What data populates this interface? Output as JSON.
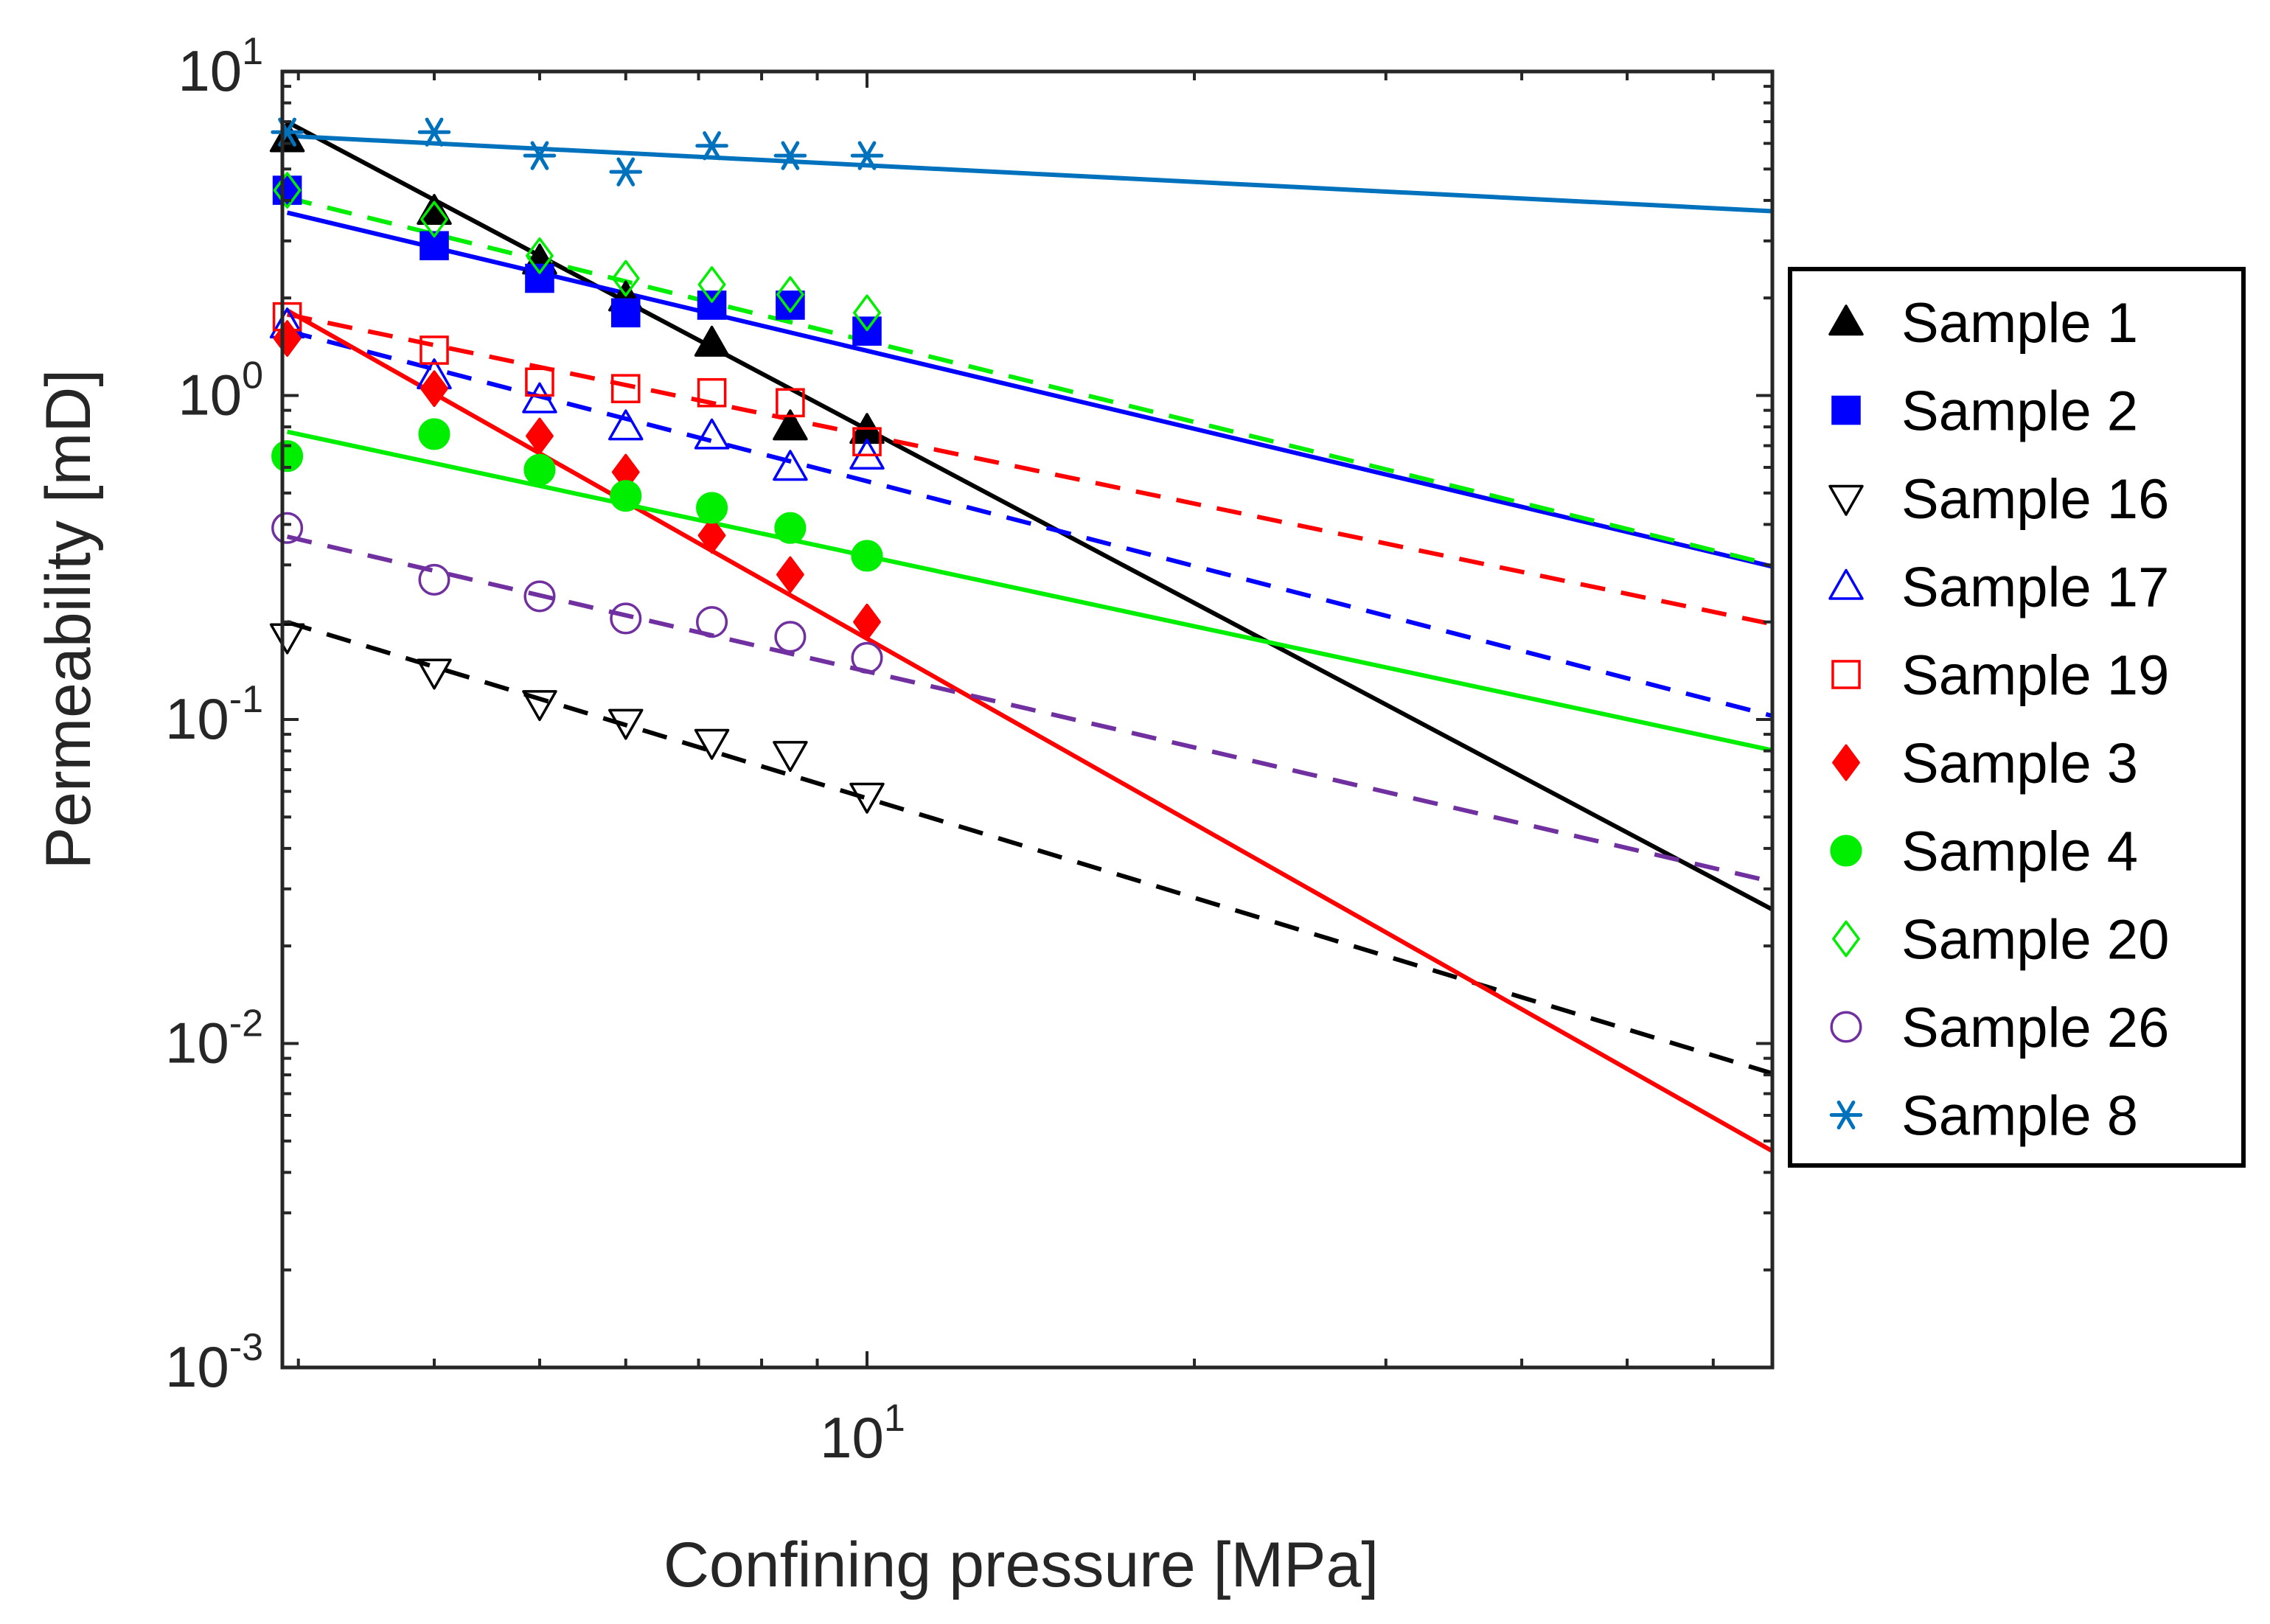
{
  "chart_data": {
    "type": "scatter",
    "xlabel": "Confining pressure [MPa]",
    "ylabel": "Permeability [mD]",
    "xscale": "log",
    "yscale": "log",
    "xlim": [
      2.9,
      68
    ],
    "ylim": [
      0.001,
      10
    ],
    "x_ticks": [
      {
        "value": 10,
        "base": "10",
        "exp": "1"
      }
    ],
    "y_ticks": [
      {
        "value": 10,
        "base": "10",
        "exp": "1"
      },
      {
        "value": 1,
        "base": "10",
        "exp": "0"
      },
      {
        "value": 0.1,
        "base": "10",
        "exp": "-1"
      },
      {
        "value": 0.01,
        "base": "10",
        "exp": "-2"
      },
      {
        "value": 0.001,
        "base": "10",
        "exp": "-3"
      }
    ],
    "legend_position": "right",
    "series": [
      {
        "name": "Sample 1",
        "marker": "triangle-up",
        "filled": true,
        "color": "#000000",
        "fit_style": "solid",
        "x": [
          2.93,
          4,
          5,
          6,
          7.2,
          8.5,
          10
        ],
        "y": [
          6.2,
          3.7,
          2.6,
          2.0,
          1.45,
          0.8,
          0.78
        ],
        "fit": {
          "a": 6.7,
          "b": -1.78
        }
      },
      {
        "name": "Sample 2",
        "marker": "square",
        "filled": true,
        "color": "#0000ff",
        "fit_style": "solid",
        "x": [
          2.93,
          4,
          5,
          6,
          7.2,
          8.5,
          10
        ],
        "y": [
          4.3,
          2.9,
          2.3,
          1.8,
          1.9,
          1.9,
          1.58
        ],
        "fit": {
          "a": 3.6,
          "b": -0.8
        }
      },
      {
        "name": "Sample 16",
        "marker": "triangle-down",
        "filled": false,
        "color": "#000000",
        "fit_style": "dashed",
        "x": [
          2.93,
          4,
          5,
          6,
          7.2,
          8.5,
          10
        ],
        "y": [
          0.18,
          0.14,
          0.112,
          0.098,
          0.085,
          0.078,
          0.058
        ],
        "fit": {
          "a": 0.195,
          "b": -1.02
        }
      },
      {
        "name": "Sample 17",
        "marker": "triangle-up",
        "filled": false,
        "color": "#0000ff",
        "fit_style": "dashed",
        "x": [
          2.93,
          4,
          5,
          6,
          7.2,
          8.5,
          10
        ],
        "y": [
          1.65,
          1.15,
          0.97,
          0.8,
          0.75,
          0.6,
          0.65
        ],
        "fit": {
          "a": 1.55,
          "b": -0.87
        }
      },
      {
        "name": "Sample 19",
        "marker": "square",
        "filled": false,
        "color": "#ff0000",
        "fit_style": "dashed",
        "x": [
          2.93,
          4,
          5,
          6,
          7.2,
          8.5,
          10
        ],
        "y": [
          1.75,
          1.38,
          1.1,
          1.05,
          1.02,
          0.95,
          0.72
        ],
        "fit": {
          "a": 1.75,
          "b": -0.7
        }
      },
      {
        "name": "Sample 3",
        "marker": "diamond",
        "filled": true,
        "color": "#ff0000",
        "fit_style": "solid",
        "x": [
          2.93,
          4,
          5,
          6,
          7.2,
          8.5,
          10
        ],
        "y": [
          1.5,
          1.05,
          0.75,
          0.58,
          0.37,
          0.28,
          0.2
        ],
        "fit": {
          "a": 1.75,
          "b": -1.9
        }
      },
      {
        "name": "Sample 4",
        "marker": "circle",
        "filled": true,
        "color": "#00ee00",
        "fit_style": "solid",
        "x": [
          2.93,
          4,
          5,
          6,
          7.2,
          8.5,
          10
        ],
        "y": [
          0.65,
          0.76,
          0.59,
          0.49,
          0.45,
          0.39,
          0.32
        ],
        "fit": {
          "a": 0.76,
          "b": -0.72
        }
      },
      {
        "name": "Sample 20",
        "marker": "diamond",
        "filled": false,
        "color": "#00ee00",
        "fit_style": "dashed",
        "x": [
          2.93,
          4,
          5,
          6,
          7.2,
          8.5,
          10
        ],
        "y": [
          4.3,
          3.5,
          2.7,
          2.3,
          2.2,
          2.05,
          1.8
        ],
        "fit": {
          "a": 4.0,
          "b": -0.83
        }
      },
      {
        "name": "Sample 26",
        "marker": "circle",
        "filled": false,
        "color": "#7030a0",
        "fit_style": "dashed",
        "x": [
          2.93,
          4,
          5,
          6,
          7.2,
          8.5,
          10
        ],
        "y": [
          0.39,
          0.27,
          0.24,
          0.205,
          0.2,
          0.18,
          0.155
        ],
        "fit": {
          "a": 0.36,
          "b": -0.78
        }
      },
      {
        "name": "Sample 8",
        "marker": "asterisk",
        "filled": false,
        "color": "#0072bd",
        "fit_style": "solid",
        "x": [
          2.93,
          4,
          5,
          6,
          7.2,
          8.5,
          10
        ],
        "y": [
          6.5,
          6.5,
          5.5,
          4.9,
          5.9,
          5.5,
          5.5
        ],
        "fit": {
          "a": 6.3,
          "b": -0.17
        }
      }
    ]
  }
}
